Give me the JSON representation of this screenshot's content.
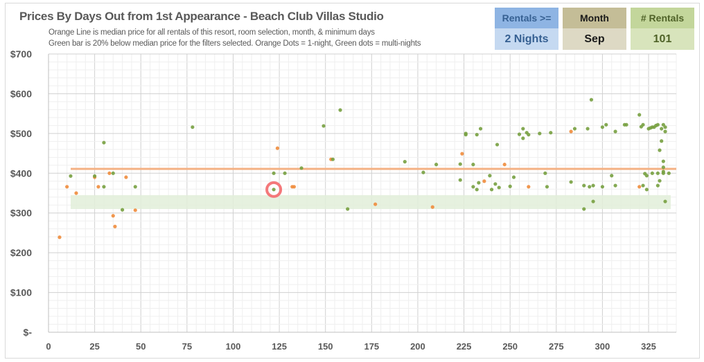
{
  "title": "Prices By Days Out from 1st Appearance - Beach Club Villas Studio",
  "subtitle_lines": [
    "Orange Line is median price for all rentals of this resort, room selection, month, & minimum days",
    "Green bar is 20% below median price for the filters selected. Orange Dots = 1-night, Green dots = multi-nights"
  ],
  "filters": [
    {
      "label": "Rentals >=",
      "value": "2 Nights",
      "header_color": "#8eb4e3",
      "value_color": "#c5d9f1",
      "text_color": "#366092"
    },
    {
      "label": "Month",
      "value": "Sep",
      "header_color": "#c4bd97",
      "value_color": "#ddd9c4",
      "text_color": "#1a1a1a"
    },
    {
      "label": "# Rentals",
      "value": "101",
      "header_color": "#c3d69b",
      "value_color": "#d8e4bc",
      "text_color": "#4f6228"
    }
  ],
  "chart_data": {
    "type": "scatter",
    "title": "Prices By Days Out from 1st Appearance - Beach Club Villas Studio",
    "xlim": [
      0,
      340
    ],
    "ylim": [
      0,
      700
    ],
    "x_ticks": [
      0,
      25,
      50,
      75,
      100,
      125,
      150,
      175,
      200,
      225,
      250,
      275,
      300,
      325
    ],
    "x_tick_labels": [
      "0",
      "25",
      "50",
      "75",
      "100",
      "125",
      "150",
      "175",
      "200",
      "225",
      "250",
      "275",
      "300",
      "325"
    ],
    "y_ticks": [
      0,
      100,
      200,
      300,
      400,
      500,
      600,
      700
    ],
    "y_tick_labels": [
      "$-",
      "$100",
      "$200",
      "$300",
      "$400",
      "$500",
      "$600",
      "$700"
    ],
    "grid": true,
    "colors": {
      "one_night": "#f08c3c",
      "multi_night": "#77a040",
      "median_line": "#f4b183",
      "band": "#e2efd9",
      "highlight": "#f4787a"
    },
    "median_line": {
      "value": 411,
      "x_range": [
        12,
        340
      ]
    },
    "band": {
      "low": 310,
      "high": 345,
      "x_range": [
        12,
        337
      ]
    },
    "highlight_point": [
      122,
      359
    ],
    "series": [
      {
        "name": "1-night",
        "points": [
          [
            6,
            239
          ],
          [
            10,
            366
          ],
          [
            15,
            350
          ],
          [
            25,
            390
          ],
          [
            27,
            366
          ],
          [
            33,
            400
          ],
          [
            35,
            293
          ],
          [
            36,
            266
          ],
          [
            42,
            390
          ],
          [
            47,
            307
          ],
          [
            124,
            463
          ],
          [
            132,
            366
          ],
          [
            133,
            366
          ],
          [
            153,
            435
          ],
          [
            177,
            322
          ],
          [
            208,
            315
          ],
          [
            224,
            449
          ],
          [
            236,
            380
          ],
          [
            247,
            422
          ],
          [
            260,
            366
          ],
          [
            283,
            505
          ],
          [
            320,
            366
          ]
        ]
      },
      {
        "name": "multi-night",
        "points": [
          [
            12,
            393
          ],
          [
            25,
            393
          ],
          [
            30,
            366
          ],
          [
            30,
            477
          ],
          [
            35,
            400
          ],
          [
            40,
            308
          ],
          [
            47,
            366
          ],
          [
            78,
            516
          ],
          [
            122,
            400
          ],
          [
            122,
            359
          ],
          [
            128,
            400
          ],
          [
            137,
            413
          ],
          [
            149,
            519
          ],
          [
            154,
            435
          ],
          [
            158,
            559
          ],
          [
            162,
            310
          ],
          [
            193,
            429
          ],
          [
            203,
            402
          ],
          [
            210,
            422
          ],
          [
            223,
            423
          ],
          [
            223,
            383
          ],
          [
            226,
            500
          ],
          [
            226,
            497
          ],
          [
            230,
            422
          ],
          [
            230,
            366
          ],
          [
            232,
            497
          ],
          [
            232,
            359
          ],
          [
            233,
            376
          ],
          [
            234,
            512
          ],
          [
            239,
            394
          ],
          [
            240,
            359
          ],
          [
            242,
            373
          ],
          [
            243,
            472
          ],
          [
            244,
            364
          ],
          [
            250,
            367
          ],
          [
            252,
            390
          ],
          [
            255,
            498
          ],
          [
            257,
            512
          ],
          [
            257,
            488
          ],
          [
            259,
            502
          ],
          [
            260,
            497
          ],
          [
            266,
            500
          ],
          [
            269,
            400
          ],
          [
            270,
            366
          ],
          [
            272,
            502
          ],
          [
            283,
            378
          ],
          [
            285,
            512
          ],
          [
            290,
            369
          ],
          [
            290,
            310
          ],
          [
            292,
            512
          ],
          [
            293,
            366
          ],
          [
            294,
            585
          ],
          [
            295,
            369
          ],
          [
            295,
            329
          ],
          [
            300,
            366
          ],
          [
            300,
            516
          ],
          [
            302,
            522
          ],
          [
            305,
            394
          ],
          [
            307,
            505
          ],
          [
            307,
            369
          ],
          [
            312,
            522
          ],
          [
            313,
            522
          ],
          [
            320,
            547
          ],
          [
            321,
            517
          ],
          [
            322,
            522
          ],
          [
            322,
            369
          ],
          [
            323,
            399
          ],
          [
            324,
            394
          ],
          [
            324,
            359
          ],
          [
            325,
            512
          ],
          [
            326,
            514
          ],
          [
            327,
            516
          ],
          [
            327,
            400
          ],
          [
            328,
            516
          ],
          [
            329,
            520
          ],
          [
            330,
            522
          ],
          [
            330,
            400
          ],
          [
            330,
            369
          ],
          [
            331,
            458
          ],
          [
            331,
            381
          ],
          [
            332,
            512
          ],
          [
            332,
            481
          ],
          [
            333,
            522
          ],
          [
            333,
            430
          ],
          [
            333,
            415
          ],
          [
            333,
            404
          ],
          [
            333,
            400
          ],
          [
            334,
            516
          ],
          [
            334,
            505
          ],
          [
            334,
            329
          ],
          [
            336,
            400
          ]
        ]
      }
    ]
  }
}
